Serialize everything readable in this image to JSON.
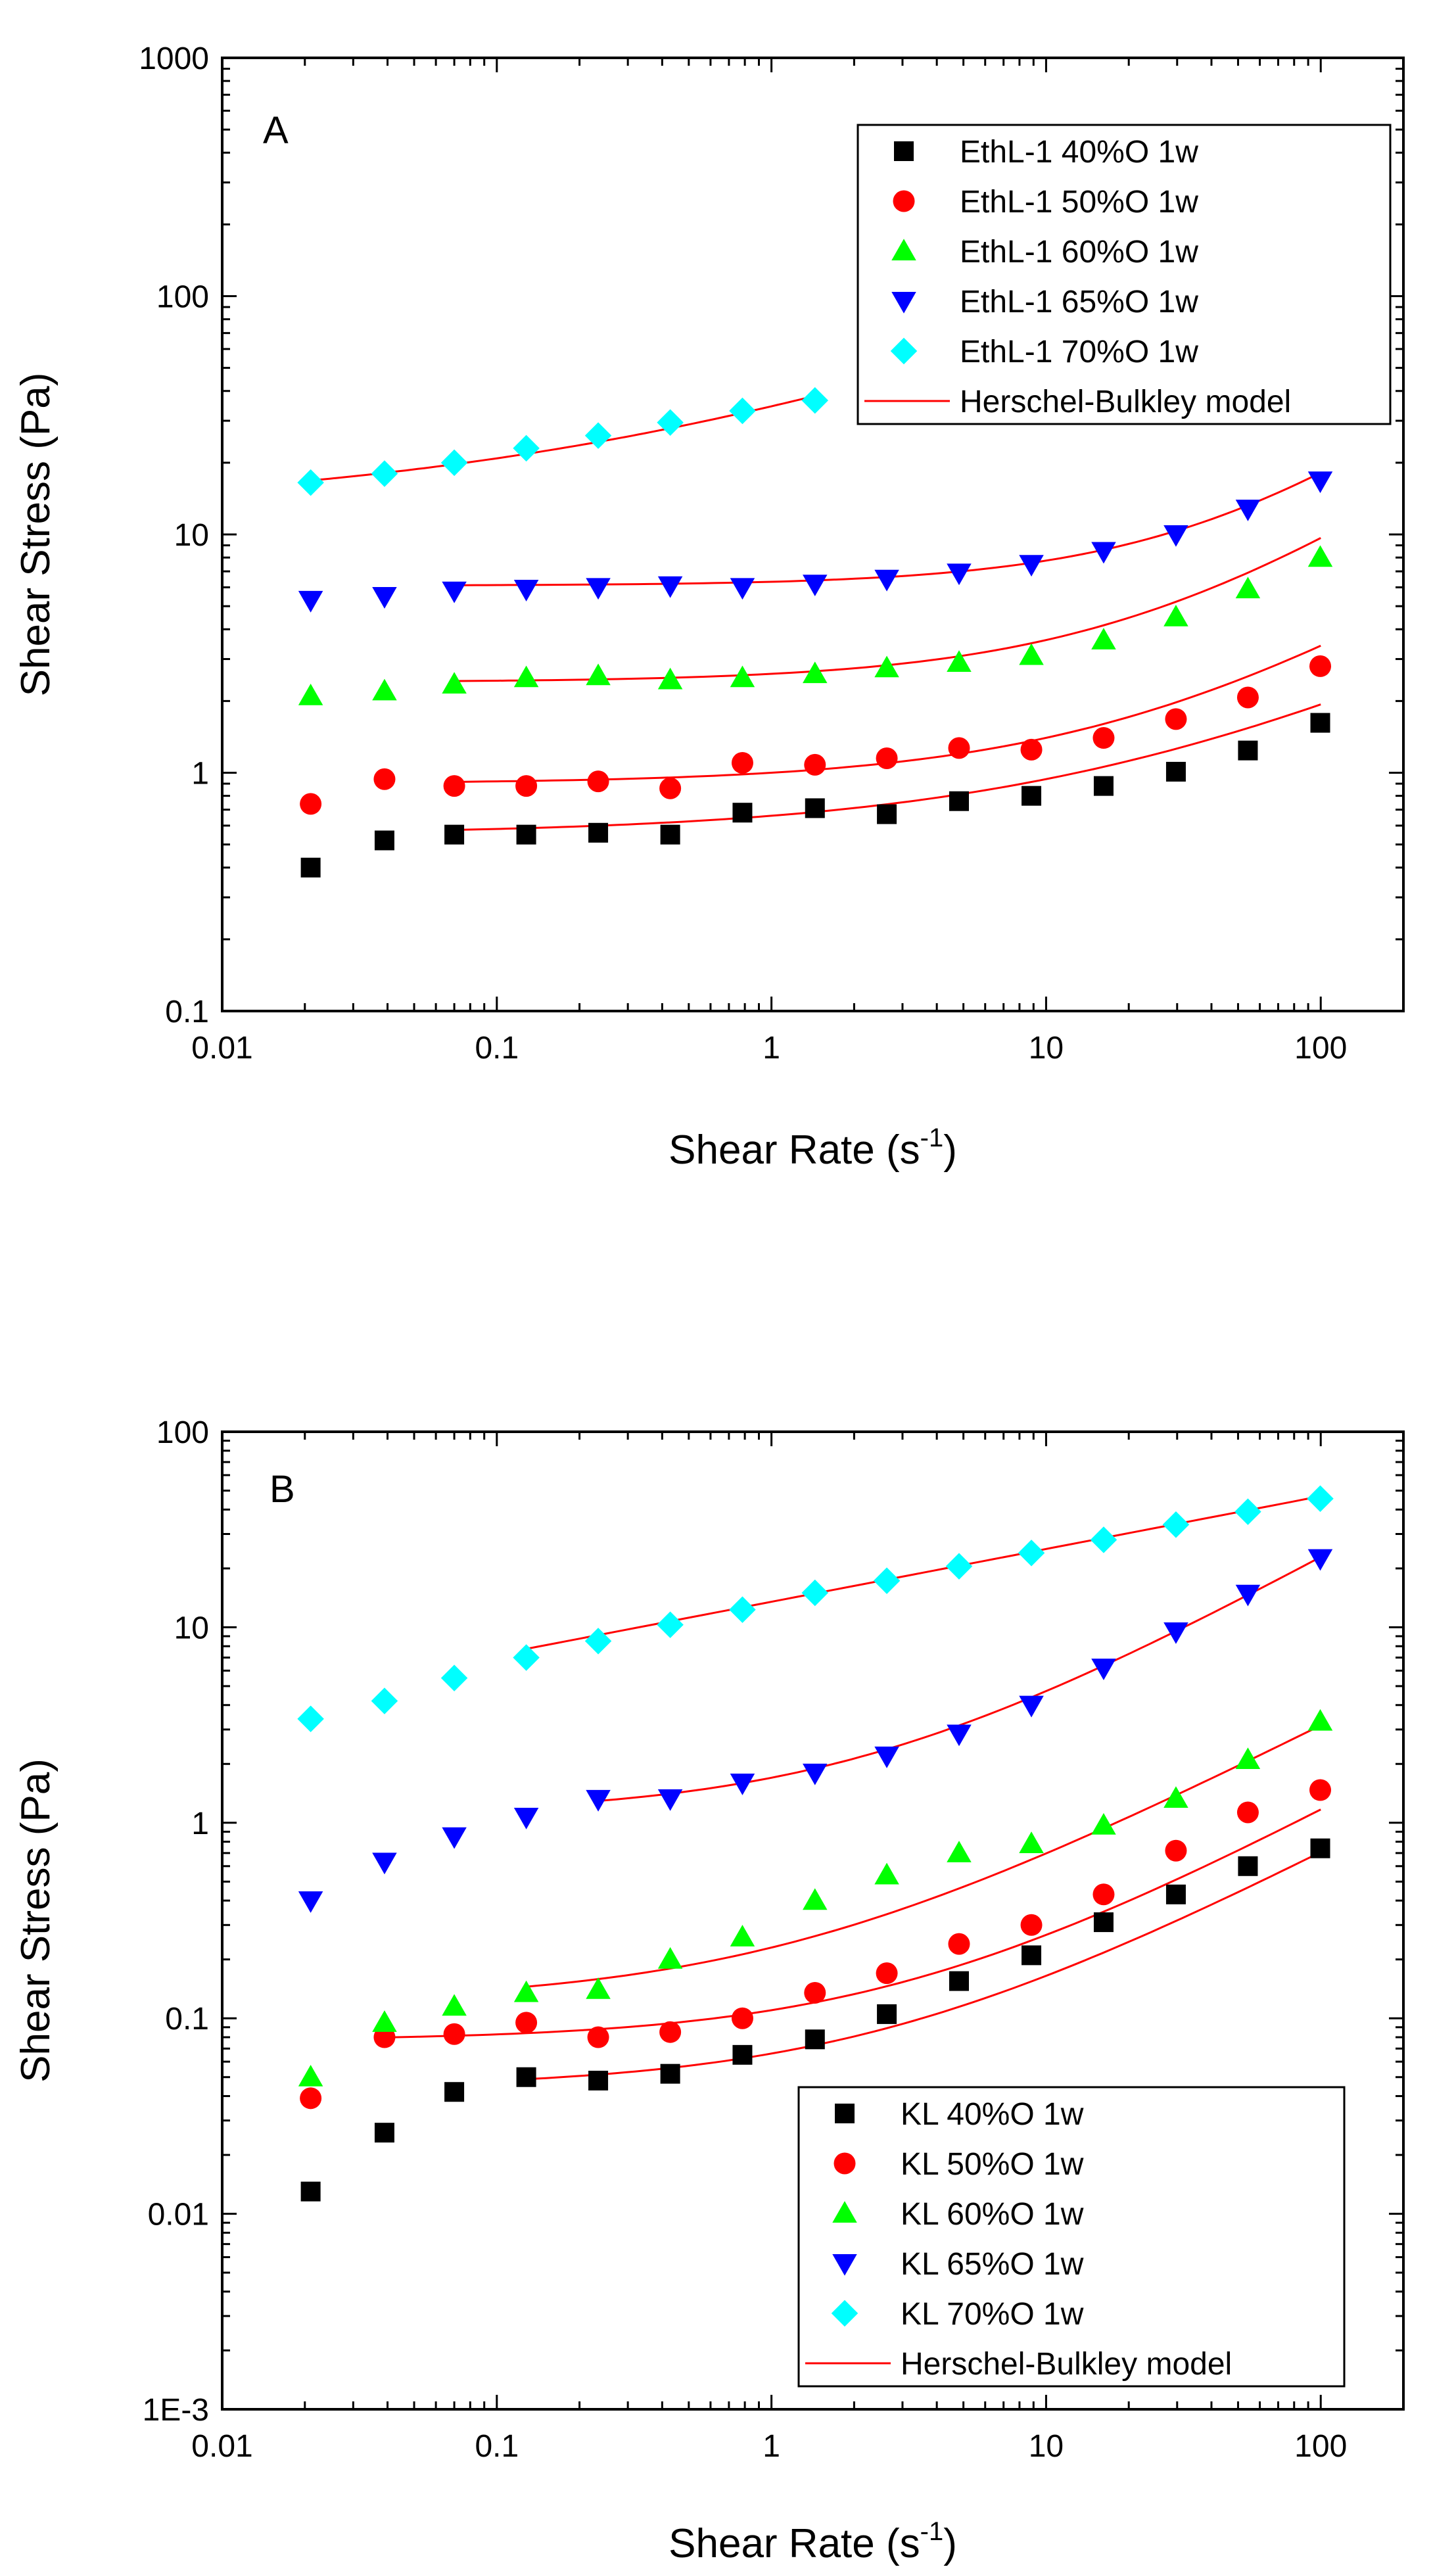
{
  "chart_data": [
    {
      "panel": "A",
      "type": "scatter",
      "xscale": "log",
      "yscale": "log",
      "xlim": [
        0.01,
        200
      ],
      "ylim": [
        0.1,
        1000
      ],
      "xlabel": "Shear Rate (s",
      "xlabel_sup": "-1",
      "xlabel_end": ")",
      "ylabel": "Shear Stress (Pa)",
      "x_ticks": [
        0.01,
        0.1,
        1,
        10,
        100
      ],
      "x_tick_labels": [
        "0.01",
        "0.1",
        "1",
        "10",
        "100"
      ],
      "y_ticks": [
        0.1,
        1,
        10,
        100,
        1000
      ],
      "y_tick_labels": [
        "0.1",
        "1",
        "10",
        "100",
        "1000"
      ],
      "legend_position": "top-right",
      "series": [
        {
          "name": "EthL-1 40%O 1w",
          "marker": "square",
          "color": "#000000",
          "x": [
            0.021,
            0.039,
            0.07,
            0.128,
            0.234,
            0.428,
            0.784,
            1.44,
            2.63,
            4.82,
            8.84,
            16.2,
            29.7,
            54.3,
            99.6
          ],
          "y": [
            0.4,
            0.52,
            0.55,
            0.55,
            0.56,
            0.55,
            0.68,
            0.71,
            0.67,
            0.76,
            0.8,
            0.88,
            1.01,
            1.24,
            1.62
          ],
          "fit_x": [
            0.07,
            100
          ],
          "fit_y0": 0.55,
          "fit_k": 0.11,
          "fit_n": 0.55
        },
        {
          "name": "EthL-1 50%O 1w",
          "marker": "circle",
          "color": "#ff0000",
          "x": [
            0.021,
            0.039,
            0.07,
            0.128,
            0.234,
            0.428,
            0.784,
            1.44,
            2.63,
            4.82,
            8.84,
            16.2,
            29.7,
            54.3,
            99.6
          ],
          "y": [
            0.74,
            0.94,
            0.88,
            0.88,
            0.92,
            0.86,
            1.1,
            1.08,
            1.15,
            1.27,
            1.25,
            1.4,
            1.68,
            2.07,
            2.8
          ],
          "fit_x": [
            0.07,
            100
          ],
          "fit_y0": 0.9,
          "fit_k": 0.1,
          "fit_n": 0.7
        },
        {
          "name": "EthL-1 60%O 1w",
          "marker": "triangle-up",
          "color": "#00ff00",
          "x": [
            0.021,
            0.039,
            0.07,
            0.128,
            0.234,
            0.428,
            0.784,
            1.44,
            2.63,
            4.82,
            8.84,
            16.2,
            29.7,
            54.3,
            99.6
          ],
          "y": [
            2.1,
            2.2,
            2.35,
            2.5,
            2.55,
            2.45,
            2.5,
            2.6,
            2.75,
            2.9,
            3.1,
            3.6,
            4.5,
            5.9,
            8.0
          ],
          "fit_x": [
            0.07,
            100
          ],
          "fit_y0": 2.4,
          "fit_k": 0.2,
          "fit_n": 0.78
        },
        {
          "name": "EthL-1 65%O 1w",
          "marker": "triangle-down",
          "color": "#0000ff",
          "x": [
            0.021,
            0.039,
            0.07,
            0.128,
            0.234,
            0.428,
            0.784,
            1.44,
            2.63,
            4.82,
            8.84,
            16.2,
            29.7,
            54.3,
            99.6
          ],
          "y": [
            5.3,
            5.5,
            5.8,
            5.9,
            6.0,
            6.1,
            6.0,
            6.2,
            6.5,
            6.9,
            7.5,
            8.5,
            10.0,
            12.8,
            16.8
          ],
          "fit_x": [
            0.07,
            100
          ],
          "fit_y0": 6.1,
          "fit_k": 0.23,
          "fit_n": 0.86
        },
        {
          "name": "EthL-1 70%O 1w",
          "marker": "diamond",
          "color": "#00ffff",
          "x": [
            0.021,
            0.039,
            0.07,
            0.128,
            0.234,
            0.428,
            0.784,
            1.44
          ],
          "y": [
            16.5,
            18.0,
            20.0,
            23.0,
            26.0,
            29.5,
            33.0,
            36.5
          ],
          "fit_x": [
            0.021,
            1.44
          ],
          "fit_y0": 12.5,
          "fit_k": 22.0,
          "fit_n": 0.42
        }
      ],
      "fit_legend": "Herschel-Bulkley model",
      "panel_letter": "A"
    },
    {
      "panel": "B",
      "type": "scatter",
      "xscale": "log",
      "yscale": "log",
      "xlim": [
        0.01,
        200
      ],
      "ylim": [
        0.001,
        100
      ],
      "xlabel": "Shear Rate (s",
      "xlabel_sup": "-1",
      "xlabel_end": ")",
      "ylabel": "Shear Stress (Pa)",
      "x_ticks": [
        0.01,
        0.1,
        1,
        10,
        100
      ],
      "x_tick_labels": [
        "0.01",
        "0.1",
        "1",
        "10",
        "100"
      ],
      "y_ticks": [
        0.001,
        0.01,
        0.1,
        1,
        10,
        100
      ],
      "y_tick_labels": [
        "1E-3",
        "0.01",
        "0.1",
        "1",
        "10",
        "100"
      ],
      "legend_position": "bottom-right",
      "series": [
        {
          "name": "KL 40%O 1w",
          "marker": "square",
          "color": "#000000",
          "x": [
            0.021,
            0.039,
            0.07,
            0.128,
            0.234,
            0.428,
            0.784,
            1.44,
            2.63,
            4.82,
            8.84,
            16.2,
            29.7,
            54.3,
            99.6
          ],
          "y": [
            0.013,
            0.026,
            0.042,
            0.05,
            0.048,
            0.052,
            0.065,
            0.078,
            0.105,
            0.155,
            0.21,
            0.31,
            0.43,
            0.6,
            0.74
          ],
          "fit_x": [
            0.128,
            100
          ],
          "fit_y0": 0.044,
          "fit_k": 0.022,
          "fit_n": 0.74
        },
        {
          "name": "KL 50%O 1w",
          "marker": "circle",
          "color": "#ff0000",
          "x": [
            0.021,
            0.039,
            0.07,
            0.128,
            0.234,
            0.428,
            0.784,
            1.44,
            2.63,
            4.82,
            8.84,
            16.2,
            29.7,
            54.3,
            99.6
          ],
          "y": [
            0.039,
            0.08,
            0.083,
            0.095,
            0.08,
            0.085,
            0.1,
            0.135,
            0.17,
            0.24,
            0.3,
            0.43,
            0.72,
            1.13,
            1.47
          ],
          "fit_x": [
            0.039,
            100
          ],
          "fit_y0": 0.077,
          "fit_k": 0.033,
          "fit_n": 0.76
        },
        {
          "name": "KL 60%O 1w",
          "marker": "triangle-up",
          "color": "#00ff00",
          "x": [
            0.021,
            0.039,
            0.07,
            0.128,
            0.234,
            0.428,
            0.784,
            1.44,
            2.63,
            4.82,
            8.84,
            16.2,
            29.7,
            54.3,
            99.6
          ],
          "y": [
            0.05,
            0.095,
            0.115,
            0.135,
            0.14,
            0.2,
            0.26,
            0.4,
            0.54,
            0.7,
            0.78,
            0.97,
            1.33,
            2.1,
            3.3
          ],
          "fit_x": [
            0.128,
            100
          ],
          "fit_y0": 0.12,
          "fit_k": 0.11,
          "fit_n": 0.72
        },
        {
          "name": "KL 65%O 1w",
          "marker": "triangle-down",
          "color": "#0000ff",
          "x": [
            0.021,
            0.039,
            0.07,
            0.128,
            0.234,
            0.428,
            0.784,
            1.44,
            2.63,
            4.82,
            8.84,
            16.2,
            29.7,
            54.3,
            99.6
          ],
          "y": [
            0.4,
            0.63,
            0.85,
            1.07,
            1.32,
            1.33,
            1.6,
            1.8,
            2.2,
            2.85,
            4.0,
            6.2,
            9.5,
            14.8,
            22.5
          ],
          "fit_x": [
            0.234,
            100
          ],
          "fit_y0": 1.1,
          "fit_k": 0.6,
          "fit_n": 0.78
        },
        {
          "name": "KL 70%O 1w",
          "marker": "diamond",
          "color": "#00ffff",
          "x": [
            0.021,
            0.039,
            0.07,
            0.128,
            0.234,
            0.428,
            0.784,
            1.44,
            2.63,
            4.82,
            8.84,
            16.2,
            29.7,
            54.3,
            99.6
          ],
          "y": [
            3.4,
            4.2,
            5.5,
            7.0,
            8.5,
            10.3,
            12.3,
            15.0,
            17.3,
            20.5,
            24.0,
            28.0,
            33.5,
            39.0,
            45.5
          ],
          "fit_x": [
            0.128,
            100
          ],
          "fit_y0": 0.0,
          "fit_k": 13.5,
          "fit_n": 0.27
        }
      ],
      "fit_legend": "Herschel-Bulkley model",
      "panel_letter": "B"
    }
  ]
}
